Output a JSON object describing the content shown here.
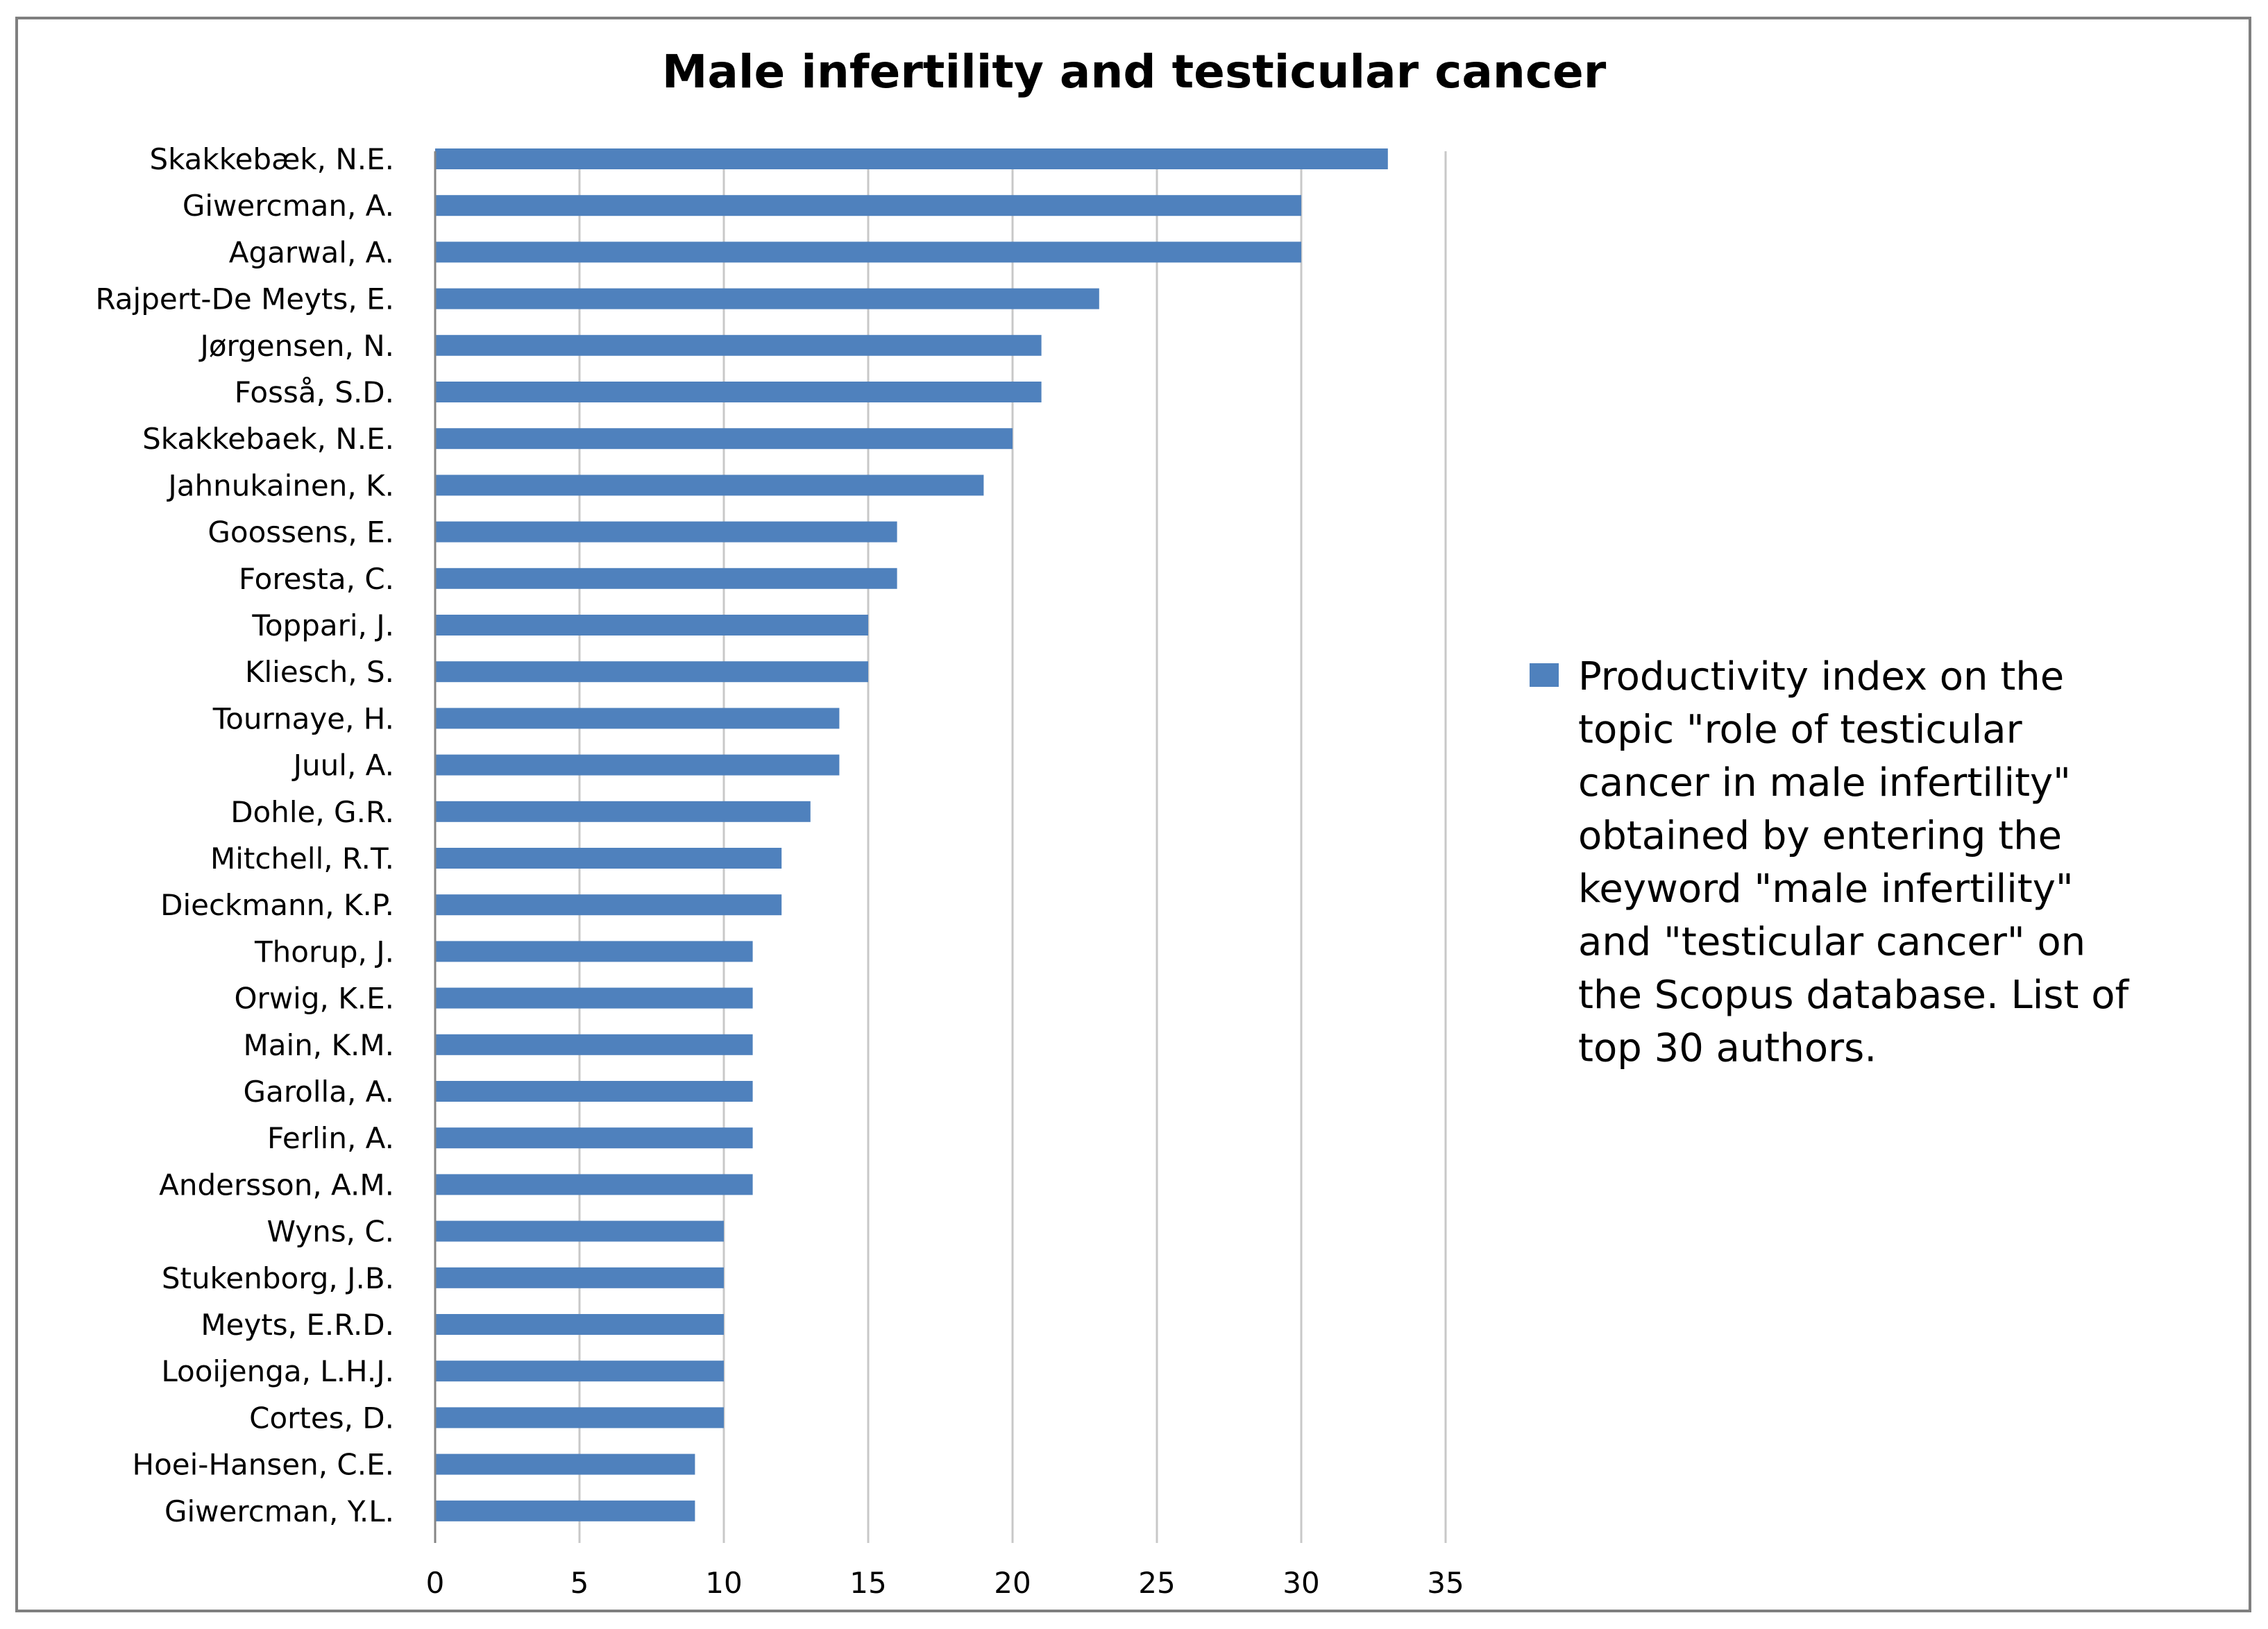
{
  "chart_data": {
    "type": "bar",
    "orientation": "horizontal",
    "title": "Male infertility and testicular cancer",
    "xlabel": "",
    "ylabel": "",
    "xlim": [
      0,
      35
    ],
    "x_ticks": [
      "0",
      "5",
      "10",
      "15",
      "20",
      "25",
      "30",
      "35"
    ],
    "grid": "vertical",
    "legend_position": "right",
    "categories": [
      "Skakkebæk, N.E.",
      "Giwercman, A.",
      "Agarwal, A.",
      "Rajpert-De Meyts, E.",
      "Jørgensen, N.",
      "Fosså, S.D.",
      "Skakkebaek, N.E.",
      "Jahnukainen, K.",
      "Goossens, E.",
      "Foresta, C.",
      "Toppari, J.",
      "Kliesch, S.",
      "Tournaye, H.",
      "Juul, A.",
      "Dohle, G.R.",
      "Mitchell, R.T.",
      "Dieckmann, K.P.",
      "Thorup, J.",
      "Orwig, K.E.",
      "Main, K.M.",
      "Garolla, A.",
      "Ferlin, A.",
      "Andersson, A.M.",
      "Wyns, C.",
      "Stukenborg, J.B.",
      "Meyts, E.R.D.",
      "Looijenga, L.H.J.",
      "Cortes, D.",
      "Hoei-Hansen, C.E.",
      "Giwercman, Y.L."
    ],
    "series": [
      {
        "name": "Productivity index on the topic \"role of testicular cancer in male infertility\" obtained by entering the keyword \"male infertility\" and \"testicular cancer\" on the Scopus database. List of top 30 authors.",
        "values": [
          33,
          30,
          30,
          23,
          21,
          21,
          20,
          19,
          16,
          16,
          15,
          15,
          14,
          14,
          13,
          12,
          12,
          11,
          11,
          11,
          11,
          11,
          11,
          10,
          10,
          10,
          10,
          10,
          9,
          9
        ]
      }
    ],
    "legend_lines": [
      "Productivity index on the",
      "topic \"role of testicular",
      "cancer in male infertility\"",
      "obtained by entering the",
      "keyword \"male infertility\"",
      "and \"testicular cancer\" on",
      "the Scopus database. List of",
      "top 30 authors."
    ],
    "colors": {
      "bar": "#4f81bd",
      "grid": "#c8c8c8",
      "axis": "#868686",
      "frame": "#7f7f7f"
    }
  }
}
